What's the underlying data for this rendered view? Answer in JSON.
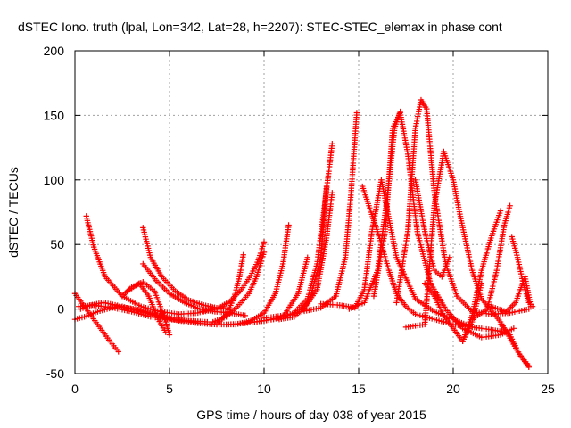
{
  "chart_data": {
    "type": "scatter",
    "title": "dSTEC Iono. truth (lpal, Lon=342, Lat=28, h=2207): STEC-STEC_elemax in phase cont",
    "xlabel": "GPS time / hours of day 038 of year 2015",
    "ylabel": "dSTEC  / TECUs",
    "xlim": [
      0,
      25
    ],
    "ylim": [
      -50,
      200
    ],
    "xticks": [
      0,
      5,
      10,
      15,
      20,
      25
    ],
    "yticks": [
      -50,
      0,
      50,
      100,
      150,
      200
    ],
    "grid": true,
    "marker": "+",
    "color": "#ff0000",
    "series": [
      {
        "x": [
          0,
          0.6,
          1.2,
          1.8,
          2.3
        ],
        "y": [
          12,
          0,
          -12,
          -24,
          -33
        ]
      },
      {
        "x": [
          0.6,
          1.0,
          1.6,
          2.5,
          3.5,
          4.5,
          5.5,
          6.5,
          7.3
        ],
        "y": [
          72,
          48,
          25,
          10,
          2,
          -2,
          -4,
          -3,
          1
        ]
      },
      {
        "x": [
          0,
          0.5,
          1.2,
          2.2,
          3.2,
          4.2,
          5.2,
          6.5
        ],
        "y": [
          -8,
          -6,
          -2,
          2,
          0,
          -4,
          -8,
          -10
        ]
      },
      {
        "x": [
          0.2,
          1.0,
          2.0,
          3.0,
          4.0,
          5.0,
          6.0,
          7.0
        ],
        "y": [
          2,
          3,
          1,
          -2,
          -6,
          -8,
          -9,
          -10
        ]
      },
      {
        "x": [
          0.3,
          0.8,
          1.5,
          2.5,
          3.5,
          4.5,
          5.5,
          6.5,
          7.5,
          8.5
        ],
        "y": [
          0,
          3,
          5,
          2,
          -2,
          -6,
          -9,
          -11,
          -12,
          -12
        ]
      },
      {
        "x": [
          3.6,
          4.0,
          4.6,
          5.3,
          6.0,
          6.8,
          7.5,
          8.2
        ],
        "y": [
          63,
          40,
          25,
          14,
          7,
          3,
          1,
          0
        ]
      },
      {
        "x": [
          3.6,
          4.3,
          5.0,
          5.8,
          6.6,
          7.4,
          8.2,
          9.0
        ],
        "y": [
          35,
          22,
          12,
          5,
          0,
          -2,
          -3,
          -5
        ]
      },
      {
        "x": [
          2.5,
          3.0,
          3.6,
          4.2,
          4.7,
          5.0
        ],
        "y": [
          10,
          17,
          21,
          14,
          -5,
          -20
        ]
      },
      {
        "x": [
          2.8,
          3.4,
          3.9,
          4.4,
          4.8
        ],
        "y": [
          14,
          20,
          10,
          -8,
          -18
        ]
      },
      {
        "x": [
          6.8,
          7.5,
          8.2,
          8.8,
          9.3,
          9.7,
          10.0
        ],
        "y": [
          -2,
          0,
          6,
          15,
          26,
          38,
          52
        ]
      },
      {
        "x": [
          7.3,
          8.0,
          8.6,
          9.2,
          9.6,
          10.0
        ],
        "y": [
          -10,
          -6,
          2,
          12,
          25,
          44
        ]
      },
      {
        "x": [
          7.5,
          8.0,
          8.4,
          8.7,
          8.9
        ],
        "y": [
          -12,
          -4,
          8,
          25,
          42
        ]
      },
      {
        "x": [
          8.5,
          9.3,
          10.0,
          10.6,
          11.0,
          11.3
        ],
        "y": [
          -12,
          -9,
          -3,
          12,
          35,
          65
        ]
      },
      {
        "x": [
          8.0,
          9.0,
          10.0,
          11.0,
          11.8,
          12.3
        ],
        "y": [
          -12,
          -11,
          -9,
          -6,
          12,
          40
        ]
      },
      {
        "x": [
          9.5,
          10.5,
          11.5,
          12.3,
          12.8,
          13.2,
          13.6
        ],
        "y": [
          -10,
          -8,
          -4,
          8,
          35,
          80,
          128
        ]
      },
      {
        "x": [
          10.0,
          11.0,
          12.0,
          12.8,
          13.3,
          13.6
        ],
        "y": [
          -7,
          -5,
          -2,
          15,
          55,
          90
        ]
      },
      {
        "x": [
          10.8,
          11.6,
          12.4,
          13.0,
          13.3
        ],
        "y": [
          -8,
          -6,
          6,
          40,
          95
        ]
      },
      {
        "x": [
          12.0,
          13.0,
          13.8,
          14.3,
          14.6,
          14.9
        ],
        "y": [
          -2,
          1,
          10,
          40,
          90,
          152
        ]
      },
      {
        "x": [
          13.0,
          14.0,
          14.8,
          15.3,
          15.7,
          16.2,
          17.0,
          18.0,
          19.0,
          20.0,
          21.0
        ],
        "y": [
          4,
          3,
          1,
          15,
          60,
          100,
          40,
          8,
          -2,
          -8,
          -14
        ]
      },
      {
        "x": [
          15.2,
          16.0,
          16.6,
          17.0,
          17.5,
          18.0,
          19.0,
          20.0,
          21.0,
          22.0,
          22.8
        ],
        "y": [
          95,
          60,
          30,
          12,
          2,
          -4,
          -8,
          -12,
          -14,
          -16,
          -18
        ]
      },
      {
        "x": [
          14.5,
          15.3,
          16.0,
          16.5,
          16.9,
          17.2
        ],
        "y": [
          0,
          5,
          30,
          85,
          140,
          153
        ]
      },
      {
        "x": [
          15.8,
          16.4,
          16.8,
          17.2,
          17.6,
          18.1,
          18.8,
          19.6,
          20.5,
          21.5,
          22.5,
          23.2
        ],
        "y": [
          10,
          60,
          140,
          152,
          120,
          60,
          20,
          0,
          -15,
          -22,
          -20,
          -15
        ]
      },
      {
        "x": [
          17.0,
          17.6,
          18.0,
          18.3,
          18.6,
          19.0,
          19.6,
          20.2,
          21.0,
          22.0,
          23.0,
          24.0
        ],
        "y": [
          5,
          60,
          140,
          162,
          155,
          90,
          35,
          10,
          -2,
          -4,
          -3,
          0
        ]
      },
      {
        "x": [
          17.5,
          18.5,
          19.0,
          19.5,
          20.0,
          20.4,
          21.0,
          21.5,
          22.5,
          23.5,
          24.0
        ],
        "y": [
          -14,
          -12,
          80,
          122,
          100,
          70,
          30,
          8,
          -10,
          -35,
          -45
        ]
      },
      {
        "x": [
          18.0,
          18.5,
          19.0,
          19.4,
          19.8
        ],
        "y": [
          100,
          60,
          30,
          25,
          40
        ]
      },
      {
        "x": [
          18.5,
          19.0,
          19.5,
          20.0,
          20.5,
          21.0,
          21.5
        ],
        "y": [
          20,
          10,
          -5,
          -15,
          -25,
          -10,
          20
        ]
      },
      {
        "x": [
          20.5,
          21.0,
          21.5,
          22.0,
          22.5
        ],
        "y": [
          -25,
          -5,
          30,
          55,
          76
        ]
      },
      {
        "x": [
          21.0,
          21.8,
          22.3,
          22.7,
          23.0
        ],
        "y": [
          -8,
          0,
          30,
          65,
          80
        ]
      },
      {
        "x": [
          22.0,
          22.8,
          23.3,
          23.8,
          24.1
        ],
        "y": [
          2,
          -2,
          5,
          25,
          2
        ]
      },
      {
        "x": [
          23.1,
          23.4,
          23.7,
          24.0,
          24.2
        ],
        "y": [
          56,
          40,
          20,
          5,
          2
        ]
      },
      {
        "x": [
          22.5,
          23.0,
          23.5,
          24.0
        ],
        "y": [
          -12,
          -20,
          -35,
          -44
        ]
      }
    ]
  }
}
